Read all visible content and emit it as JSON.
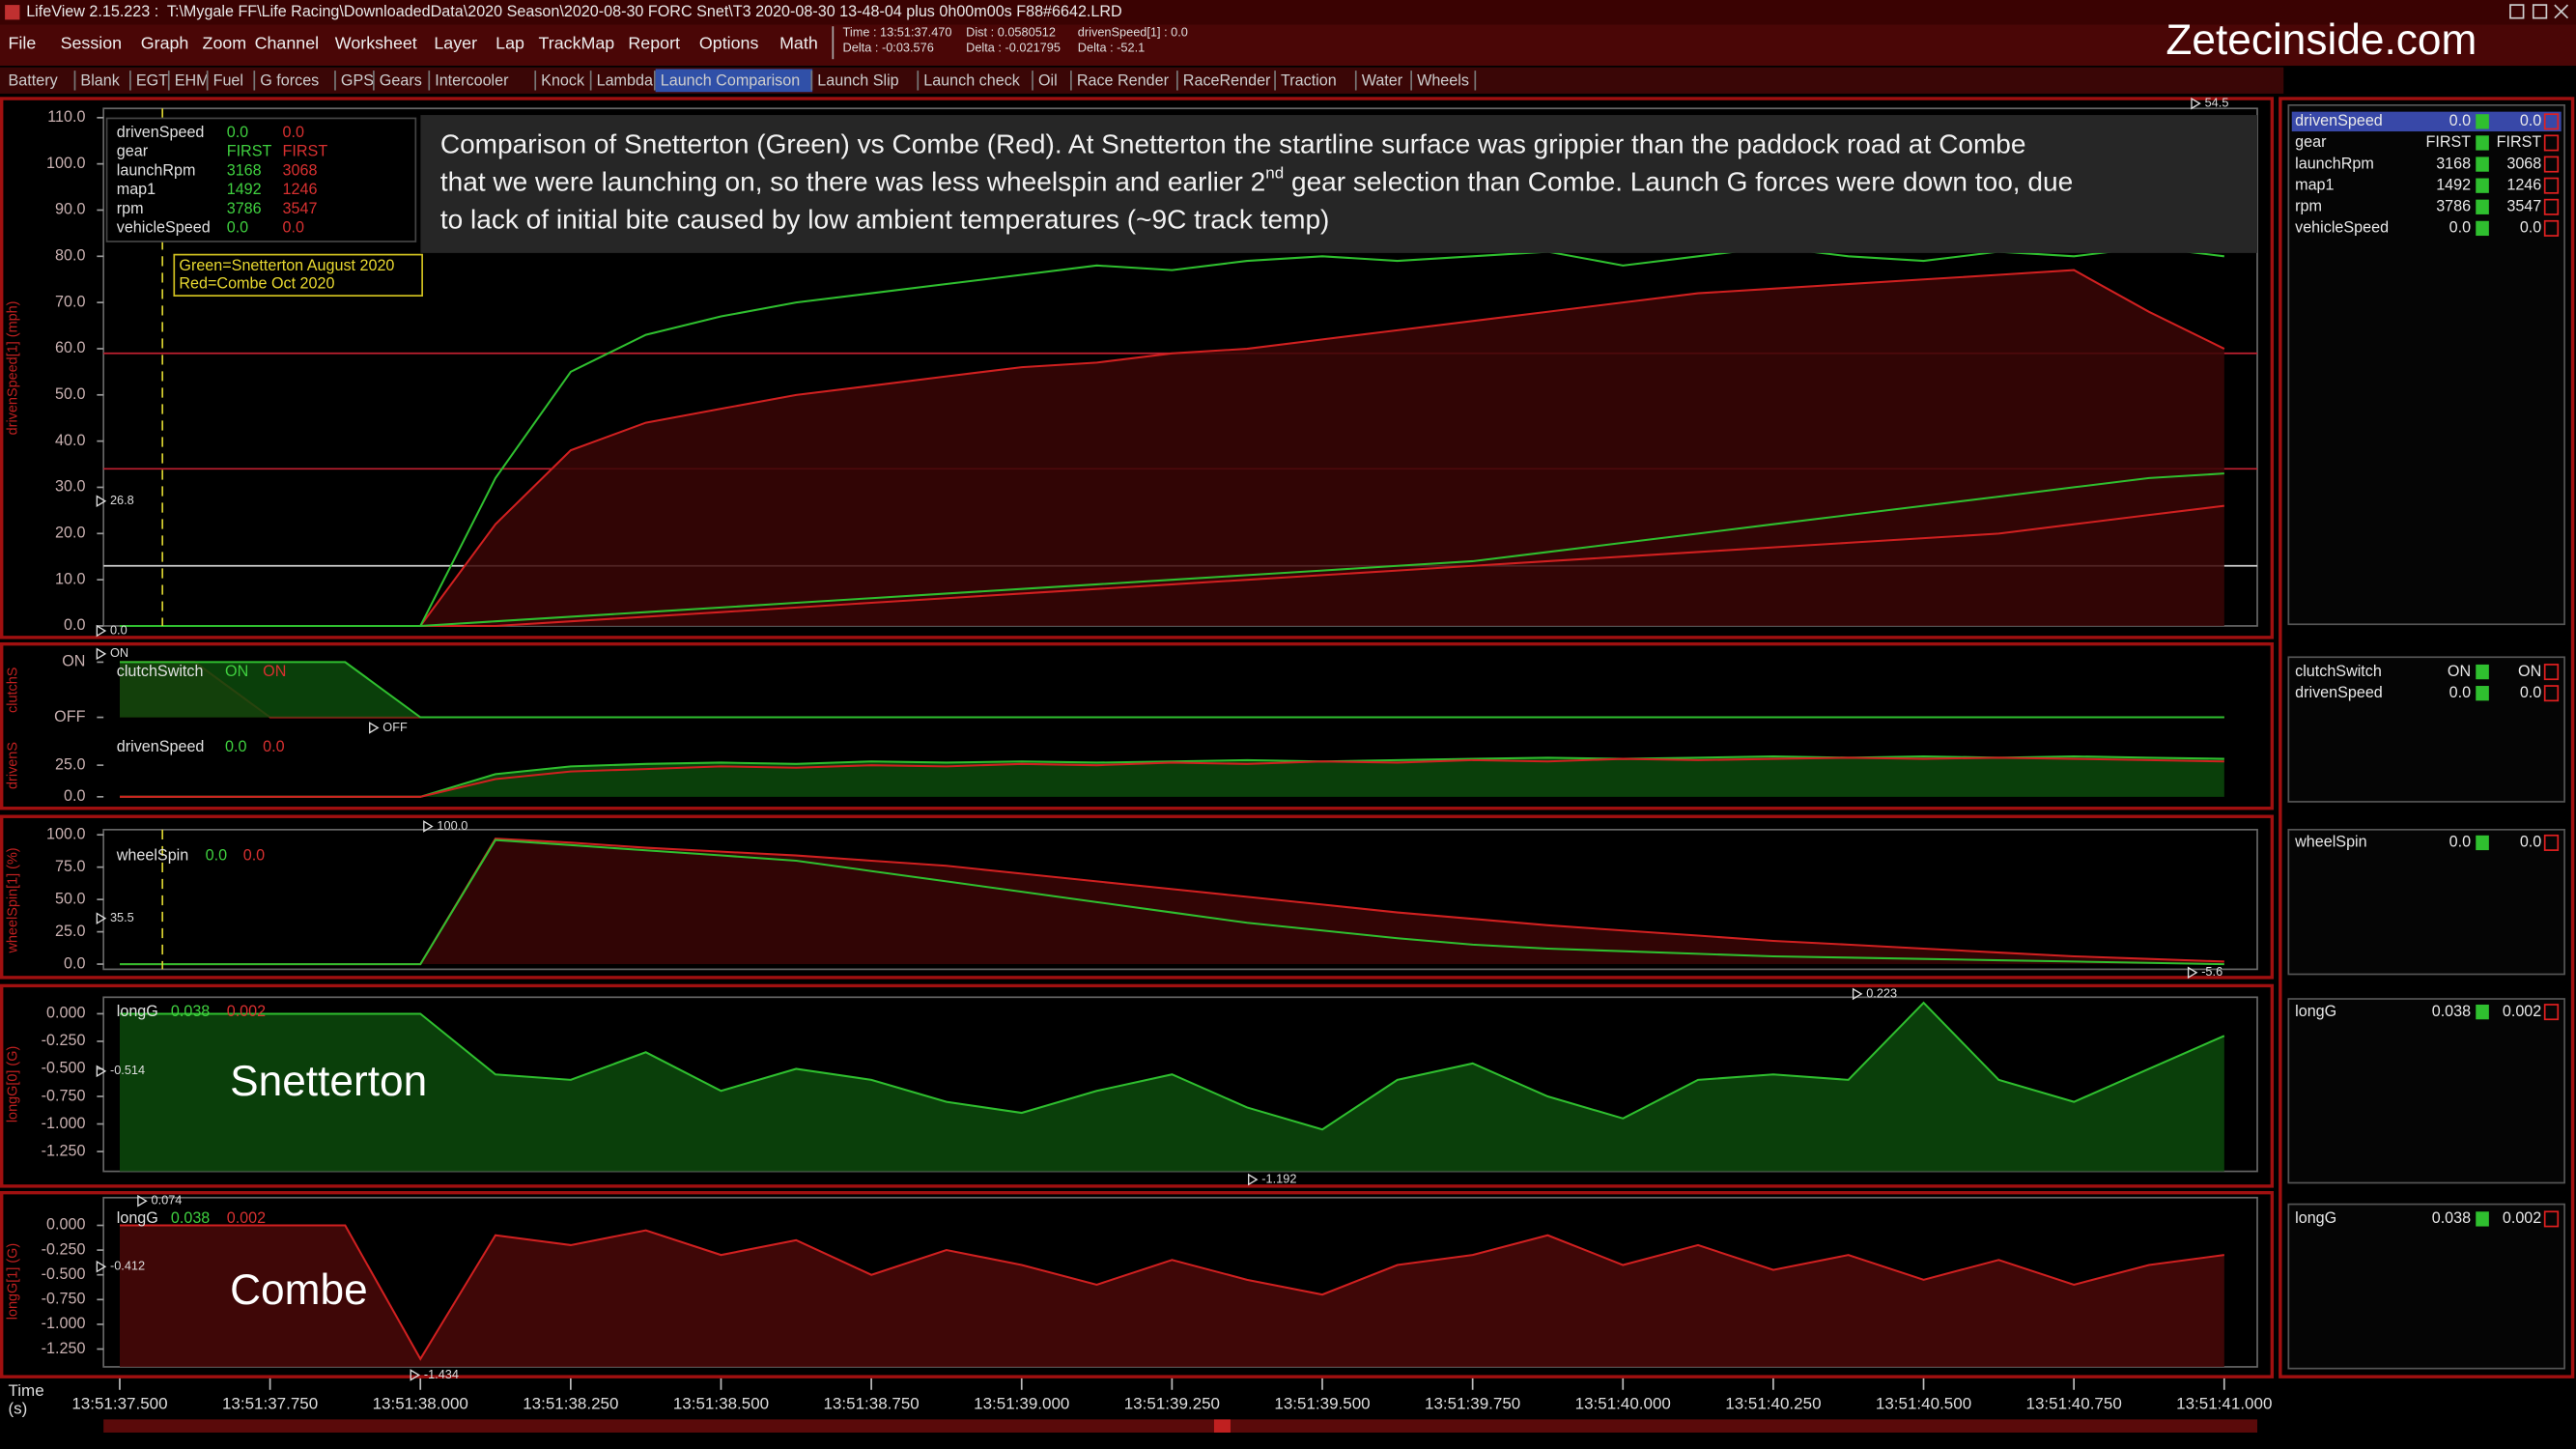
{
  "window": {
    "title": "LifeView 2.15.223 :  T:\\Mygale FF\\Life Racing\\DownloadedData\\2020 Season\\2020-08-30 FORC Snet\\T3 2020-08-30 13-48-04 plus 0h00m00s F88#6642.LRD",
    "menu": [
      "File",
      "Session",
      "Graph",
      "Zoom",
      "Channel",
      "Worksheet",
      "Layer",
      "Lap",
      "TrackMap",
      "Report",
      "Options",
      "Math"
    ],
    "info": [
      [
        "Time : 13:51:37.470",
        "Delta : -0:03.576"
      ],
      [
        "Dist : 0.0580512",
        "Delta : -0.021795"
      ],
      [
        "drivenSpeed[1] : 0.0",
        "Delta : -52.1"
      ]
    ],
    "brand": "Zetecinside.com",
    "tabs": [
      "Battery",
      "Blank",
      "EGT",
      "EHM",
      "Fuel",
      "G forces",
      "GPS",
      "Gears",
      "Intercooler",
      "Knock",
      "Lambda",
      "Launch Comparison",
      "Launch Slip",
      "Launch check",
      "Oil",
      "Race Render",
      "RaceRender",
      "Traction",
      "Water",
      "Wheels"
    ],
    "active_tab": 11
  },
  "annotation": {
    "lines": [
      [
        "Comparison of Snetterton (Green) vs Combe (Red). At Snetterton the startline surface was grippier than the paddock road at Combe"
      ],
      [
        "that we were launching on, so there was less wheelspin and earlier 2",
        "nd",
        " gear selection than Combe. Launch G forces were down too, due"
      ],
      [
        "to lack of initial bite caused by low ambient temperatures (~9C track temp)"
      ]
    ]
  },
  "key": [
    "Green=Snetterton August 2020",
    "Red=Combe Oct 2020"
  ],
  "chart_data": [
    {
      "type": "line",
      "ylabel": "drivenSpeed[1] (mph)",
      "x": [
        "13:51:37.500",
        "13:51:37.625",
        "13:51:37.750",
        "13:51:37.875",
        "13:51:38.000",
        "13:51:38.125",
        "13:51:38.250",
        "13:51:38.375",
        "13:51:38.500",
        "13:51:38.625",
        "13:51:38.750",
        "13:51:38.875",
        "13:51:39.000",
        "13:51:39.125",
        "13:51:39.250",
        "13:51:39.375",
        "13:51:39.500",
        "13:51:39.625",
        "13:51:39.750",
        "13:51:39.875",
        "13:51:40.000",
        "13:51:40.125",
        "13:51:40.250",
        "13:51:40.375",
        "13:51:40.500",
        "13:51:40.625",
        "13:51:40.750",
        "13:51:40.875",
        "13:51:41.000"
      ],
      "xlim": [
        "13:51:37.473",
        "13:51:41.055"
      ],
      "ylim": [
        0,
        112
      ],
      "yticks": [
        {
          "value": 0,
          "label": "0.0"
        },
        {
          "value": 10,
          "label": "10.0"
        },
        {
          "value": 20,
          "label": "20.0"
        },
        {
          "value": 30,
          "label": "30.0"
        },
        {
          "value": 40,
          "label": "40.0"
        },
        {
          "value": 50,
          "label": "50.0"
        },
        {
          "value": 60,
          "label": "60.0"
        },
        {
          "value": 70,
          "label": "70.0"
        },
        {
          "value": 80,
          "label": "80.0"
        },
        {
          "value": 90,
          "label": "90.0"
        },
        {
          "value": 100,
          "label": "100.0"
        },
        {
          "value": 110,
          "label": "110.0"
        }
      ],
      "series": [
        {
          "color": "#d02020",
          "fill": "#3a0606",
          "values": [
            0,
            0,
            0,
            0,
            0,
            22,
            38,
            44,
            47,
            50,
            52,
            54,
            56,
            57,
            59,
            60,
            62,
            64,
            66,
            68,
            70,
            72,
            73,
            74,
            75,
            76,
            77,
            68,
            60
          ]
        },
        {
          "color": "#d02020",
          "values": [
            0,
            0,
            0,
            0,
            0,
            0,
            1,
            2,
            3,
            4,
            5,
            6,
            7,
            8,
            9,
            10,
            11,
            12,
            13,
            14,
            15,
            16,
            17,
            18,
            19,
            20,
            22,
            24,
            26
          ]
        },
        {
          "color": "#2fbf2f",
          "values": [
            0,
            0,
            0,
            0,
            0,
            32,
            55,
            63,
            67,
            70,
            72,
            74,
            76,
            78,
            77,
            79,
            80,
            79,
            80,
            81,
            78,
            80,
            82,
            80,
            79,
            81,
            80,
            82,
            80
          ]
        },
        {
          "color": "#2fbf2f",
          "values": [
            0,
            0,
            0,
            0,
            0,
            1,
            2,
            3,
            4,
            5,
            6,
            7,
            8,
            9,
            10,
            11,
            12,
            13,
            14,
            16,
            18,
            20,
            22,
            24,
            26,
            28,
            30,
            32,
            33
          ]
        }
      ],
      "reference_lines": [
        {
          "value": 59,
          "color": "#c02030"
        },
        {
          "value": 34,
          "color": "#c02030"
        },
        {
          "value": 13,
          "color": "#d0d0d0"
        }
      ],
      "cursor": "13:51:37.571",
      "markers": [
        {
          "value": 26.8,
          "label": "26.8"
        },
        {
          "value": 54.5,
          "label": "54.5"
        },
        {
          "value": 0,
          "label": "0.0"
        }
      ],
      "legend": [
        {
          "name": "drivenSpeed",
          "values": [
            "0.0",
            "0.0"
          ]
        },
        {
          "name": "gear",
          "values": [
            "FIRST",
            "FIRST"
          ]
        },
        {
          "name": "launchRpm",
          "values": [
            "3168",
            "3068"
          ]
        },
        {
          "name": "map1",
          "values": [
            "1492",
            "1246"
          ]
        },
        {
          "name": "rpm",
          "values": [
            "3786",
            "3547"
          ]
        },
        {
          "name": "vehicleSpeed",
          "values": [
            "0.0",
            "0.0"
          ]
        }
      ]
    },
    {
      "type": "line",
      "ylabel": "clutchS",
      "x": [
        "13:51:37.500",
        "13:51:37.625",
        "13:51:37.750",
        "13:51:37.875",
        "13:51:38.000",
        "13:51:38.125",
        "13:51:38.250",
        "13:51:38.375",
        "13:51:38.500",
        "13:51:38.625",
        "13:51:38.750",
        "13:51:38.875",
        "13:51:39.000",
        "13:51:39.125",
        "13:51:39.250",
        "13:51:39.375",
        "13:51:39.500",
        "13:51:39.625",
        "13:51:39.750",
        "13:51:39.875",
        "13:51:40.000",
        "13:51:40.125",
        "13:51:40.250",
        "13:51:40.375",
        "13:51:40.500",
        "13:51:40.625",
        "13:51:40.750",
        "13:51:40.875",
        "13:51:41.000"
      ],
      "xlim": [
        "13:51:37.473",
        "13:51:41.055"
      ],
      "ylim": [
        -0.1,
        1.15
      ],
      "yticks": [
        {
          "value": 0,
          "label": "OFF"
        },
        {
          "value": 1,
          "label": "ON"
        }
      ],
      "series": [
        {
          "color": "#d02020",
          "fill": "#4a0808",
          "values": [
            1,
            1,
            0,
            0,
            0,
            0,
            0,
            0,
            0,
            0,
            0,
            0,
            0,
            0,
            0,
            0,
            0,
            0,
            0,
            0,
            0,
            0,
            0,
            0,
            0,
            0,
            0,
            0,
            0
          ]
        },
        {
          "color": "#2fbf2f",
          "fill": "#0c4a0c",
          "values": [
            1,
            1,
            1,
            1,
            0,
            0,
            0,
            0,
            0,
            0,
            0,
            0,
            0,
            0,
            0,
            0,
            0,
            0,
            0,
            0,
            0,
            0,
            0,
            0,
            0,
            0,
            0,
            0,
            0
          ]
        }
      ],
      "markers": [
        {
          "value": 1,
          "label": "ON"
        },
        {
          "value": 0,
          "label": "OFF"
        }
      ],
      "legend": [
        {
          "name": "clutchSwitch",
          "values": [
            "ON",
            "ON"
          ]
        }
      ]
    },
    {
      "type": "line",
      "ylabel": "drivenS",
      "x": [
        "13:51:37.500",
        "13:51:37.625",
        "13:51:37.750",
        "13:51:37.875",
        "13:51:38.000",
        "13:51:38.125",
        "13:51:38.250",
        "13:51:38.375",
        "13:51:38.500",
        "13:51:38.625",
        "13:51:38.750",
        "13:51:38.875",
        "13:51:39.000",
        "13:51:39.125",
        "13:51:39.250",
        "13:51:39.375",
        "13:51:39.500",
        "13:51:39.625",
        "13:51:39.750",
        "13:51:39.875",
        "13:51:40.000",
        "13:51:40.125",
        "13:51:40.250",
        "13:51:40.375",
        "13:51:40.500",
        "13:51:40.625",
        "13:51:40.750",
        "13:51:40.875",
        "13:51:41.000"
      ],
      "xlim": [
        "13:51:37.473",
        "13:51:41.055"
      ],
      "ylim": [
        0,
        52
      ],
      "yticks": [
        {
          "value": 0,
          "label": "0.0"
        },
        {
          "value": 25,
          "label": "25.0"
        }
      ],
      "series": [
        {
          "color": "#2fbf2f",
          "fill": "#0c4a0c",
          "values": [
            0,
            0,
            0,
            0,
            0,
            18,
            24,
            26,
            27,
            26,
            28,
            27,
            28,
            27,
            28,
            29,
            28,
            29,
            30,
            31,
            30,
            31,
            32,
            31,
            32,
            31,
            32,
            31,
            30
          ]
        },
        {
          "color": "#d02020",
          "values": [
            0,
            0,
            0,
            0,
            0,
            14,
            20,
            22,
            24,
            23,
            25,
            24,
            26,
            25,
            27,
            26,
            28,
            27,
            29,
            28,
            30,
            29,
            30,
            31,
            30,
            31,
            30,
            29,
            28
          ]
        }
      ],
      "legend": [
        {
          "name": "drivenSpeed",
          "values": [
            "0.0",
            "0.0"
          ]
        }
      ]
    },
    {
      "type": "line",
      "ylabel": "wheelSpin[1] (%)",
      "x": [
        "13:51:37.500",
        "13:51:37.625",
        "13:51:37.750",
        "13:51:37.875",
        "13:51:38.000",
        "13:51:38.125",
        "13:51:38.250",
        "13:51:38.375",
        "13:51:38.500",
        "13:51:38.625",
        "13:51:38.750",
        "13:51:38.875",
        "13:51:39.000",
        "13:51:39.125",
        "13:51:39.250",
        "13:51:39.375",
        "13:51:39.500",
        "13:51:39.625",
        "13:51:39.750",
        "13:51:39.875",
        "13:51:40.000",
        "13:51:40.125",
        "13:51:40.250",
        "13:51:40.375",
        "13:51:40.500",
        "13:51:40.625",
        "13:51:40.750",
        "13:51:40.875",
        "13:51:41.000"
      ],
      "xlim": [
        "13:51:37.473",
        "13:51:41.055"
      ],
      "ylim": [
        -4,
        104
      ],
      "yticks": [
        {
          "value": 0,
          "label": "0.0"
        },
        {
          "value": 25,
          "label": "25.0"
        },
        {
          "value": 50,
          "label": "50.0"
        },
        {
          "value": 75,
          "label": "75.0"
        },
        {
          "value": 100,
          "label": "100.0"
        }
      ],
      "series": [
        {
          "color": "#d02020",
          "fill": "#3a0606",
          "values": [
            0,
            0,
            0,
            0,
            0,
            97,
            94,
            90,
            87,
            84,
            80,
            76,
            70,
            64,
            58,
            52,
            46,
            40,
            35,
            30,
            26,
            22,
            18,
            15,
            12,
            9,
            6,
            4,
            2
          ]
        },
        {
          "color": "#2fbf2f",
          "values": [
            0,
            0,
            0,
            0,
            0,
            96,
            92,
            88,
            84,
            80,
            72,
            64,
            56,
            48,
            40,
            32,
            26,
            20,
            15,
            12,
            10,
            8,
            6,
            5,
            4,
            3,
            2,
            1,
            0
          ]
        }
      ],
      "cursor": "13:51:37.571",
      "markers": [
        {
          "value": 35.5,
          "label": "35.5"
        },
        {
          "value": 100,
          "label": "100.0"
        },
        {
          "value": -5.6,
          "label": "-5.6"
        }
      ],
      "legend": [
        {
          "name": "wheelSpin",
          "values": [
            "0.0",
            "0.0"
          ]
        }
      ]
    },
    {
      "type": "line",
      "title": "Snetterton",
      "ylabel": "longG[0] (G)",
      "x": [
        "13:51:37.500",
        "13:51:37.625",
        "13:51:37.750",
        "13:51:37.875",
        "13:51:38.000",
        "13:51:38.125",
        "13:51:38.250",
        "13:51:38.375",
        "13:51:38.500",
        "13:51:38.625",
        "13:51:38.750",
        "13:51:38.875",
        "13:51:39.000",
        "13:51:39.125",
        "13:51:39.250",
        "13:51:39.375",
        "13:51:39.500",
        "13:51:39.625",
        "13:51:39.750",
        "13:51:39.875",
        "13:51:40.000",
        "13:51:40.125",
        "13:51:40.250",
        "13:51:40.375",
        "13:51:40.500",
        "13:51:40.625",
        "13:51:40.750",
        "13:51:40.875",
        "13:51:41.000"
      ],
      "xlim": [
        "13:51:37.473",
        "13:51:41.055"
      ],
      "ylim": [
        -1.43,
        0.15
      ],
      "yticks": [
        {
          "value": 0,
          "label": "0.000"
        },
        {
          "value": -0.25,
          "label": "-0.250"
        },
        {
          "value": -0.5,
          "label": "-0.500"
        },
        {
          "value": -0.75,
          "label": "-0.750"
        },
        {
          "value": -1,
          "label": "-1.000"
        },
        {
          "value": -1.25,
          "label": "-1.250"
        }
      ],
      "series": [
        {
          "color": "#2fbf2f",
          "fill": "#0c4a0c",
          "values": [
            0,
            0,
            0,
            0,
            0,
            -0.55,
            -0.6,
            -0.35,
            -0.7,
            -0.5,
            -0.6,
            -0.8,
            -0.9,
            -0.7,
            -0.55,
            -0.85,
            -1.05,
            -0.6,
            -0.45,
            -0.75,
            -0.95,
            -0.6,
            -0.55,
            -0.6,
            0.1,
            -0.6,
            -0.8,
            -0.5,
            -0.2
          ]
        }
      ],
      "markers": [
        {
          "value": -0.514,
          "label": "-0.514"
        },
        {
          "value": 0.223,
          "label": "0.223"
        },
        {
          "value": -1.192,
          "label": "-1.192"
        }
      ],
      "legend": [
        {
          "name": "longG",
          "values": [
            "0.038",
            "0.002"
          ]
        }
      ]
    },
    {
      "type": "line",
      "title": "Combe",
      "ylabel": "longG[1] (G)",
      "x": [
        "13:51:37.500",
        "13:51:37.625",
        "13:51:37.750",
        "13:51:37.875",
        "13:51:38.000",
        "13:51:38.125",
        "13:51:38.250",
        "13:51:38.375",
        "13:51:38.500",
        "13:51:38.625",
        "13:51:38.750",
        "13:51:38.875",
        "13:51:39.000",
        "13:51:39.125",
        "13:51:39.250",
        "13:51:39.375",
        "13:51:39.500",
        "13:51:39.625",
        "13:51:39.750",
        "13:51:39.875",
        "13:51:40.000",
        "13:51:40.125",
        "13:51:40.250",
        "13:51:40.375",
        "13:51:40.500",
        "13:51:40.625",
        "13:51:40.750",
        "13:51:40.875",
        "13:51:41.000"
      ],
      "xlim": [
        "13:51:37.473",
        "13:51:41.055"
      ],
      "ylim": [
        -1.43,
        0.28
      ],
      "yticks": [
        {
          "value": 0,
          "label": "0.000"
        },
        {
          "value": -0.25,
          "label": "-0.250"
        },
        {
          "value": -0.5,
          "label": "-0.500"
        },
        {
          "value": -0.75,
          "label": "-0.750"
        },
        {
          "value": -1,
          "label": "-1.000"
        },
        {
          "value": -1.25,
          "label": "-1.250"
        }
      ],
      "series": [
        {
          "color": "#d02020",
          "fill": "#4a0808",
          "values": [
            0,
            0,
            0,
            0,
            -1.35,
            -0.1,
            -0.2,
            -0.05,
            -0.3,
            -0.15,
            -0.5,
            -0.25,
            -0.4,
            -0.6,
            -0.35,
            -0.55,
            -0.7,
            -0.4,
            -0.3,
            -0.1,
            -0.4,
            -0.2,
            -0.45,
            -0.3,
            -0.55,
            -0.35,
            -0.6,
            -0.4,
            -0.3
          ]
        }
      ],
      "markers": [
        {
          "value": -0.412,
          "label": "-0.412"
        },
        {
          "value": 0.074,
          "label": "0.074"
        },
        {
          "value": -1.434,
          "label": "-1.434"
        }
      ],
      "legend": [
        {
          "name": "longG",
          "values": [
            "0.038",
            "0.002"
          ]
        }
      ]
    }
  ],
  "time_axis": {
    "label": [
      "Time",
      "(s)"
    ],
    "ticks": [
      "13:51:37.500",
      "13:51:37.750",
      "13:51:38.000",
      "13:51:38.250",
      "13:51:38.500",
      "13:51:38.750",
      "13:51:39.000",
      "13:51:39.250",
      "13:51:39.500",
      "13:51:39.750",
      "13:51:40.000",
      "13:51:40.250",
      "13:51:40.500",
      "13:51:40.750",
      "13:51:41.000"
    ]
  }
}
